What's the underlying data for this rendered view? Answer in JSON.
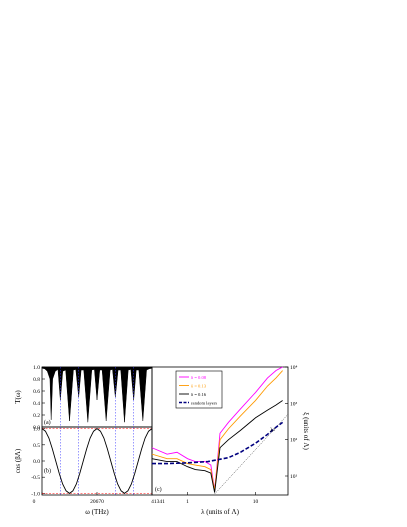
{
  "chart_data": [
    {
      "panel_label": "(a)",
      "type": "line",
      "ylabel": "T(ω)",
      "yticks": [
        "0.0",
        "0.2",
        "0.4",
        "0.6",
        "0.8",
        "1.0"
      ],
      "ylim": [
        0,
        1.0
      ],
      "xlim": [
        0,
        41341
      ],
      "series": [
        {
          "color": "#000000",
          "x": [
            0,
            1000,
            2000,
            3000,
            3445,
            4000,
            5000,
            6000,
            6890,
            7800,
            8900,
            10335,
            11800,
            12700,
            13780,
            14700,
            15700,
            17225,
            18700,
            19700,
            20670,
            21700,
            22600,
            24115,
            25600,
            26500,
            27560,
            28600,
            29600,
            31005,
            32400,
            33400,
            34450,
            35400,
            36400,
            37895,
            39300,
            40300,
            41341
          ],
          "y": [
            0.98,
            0.97,
            0.93,
            0.8,
            0.12,
            0.8,
            0.93,
            0.96,
            0.45,
            0.93,
            0.95,
            0.1,
            0.95,
            0.96,
            0.5,
            0.95,
            0.95,
            0.08,
            0.95,
            0.96,
            0.45,
            0.95,
            0.95,
            0.1,
            0.95,
            0.96,
            0.5,
            0.95,
            0.95,
            0.08,
            0.95,
            0.96,
            0.45,
            0.95,
            0.95,
            0.1,
            0.95,
            0.97,
            0.98
          ]
        }
      ],
      "grid": false
    },
    {
      "panel_label": "(b)",
      "type": "line",
      "ylabel": "cos (βΛ)",
      "xlabel": "ω (THz)",
      "xticks": [
        "0",
        "20670",
        "41341"
      ],
      "yticks": [
        "-1.0",
        "-0.5",
        "0.0",
        "0.5",
        "1.0"
      ],
      "xlim": [
        0,
        41341
      ],
      "ylim": [
        -1.05,
        1.05
      ],
      "series": [
        {
          "color": "#000000",
          "x": [
            0,
            1292,
            2584,
            3876,
            5168,
            6460,
            7752,
            9044,
            10336,
            11628,
            12920,
            14212,
            15504,
            16796,
            18088,
            19380,
            20672,
            21964,
            23256,
            24548,
            25840,
            27132,
            28424,
            29716,
            31008,
            32300,
            33592,
            34884,
            36176,
            37468,
            38760,
            40052,
            41341
          ],
          "y": [
            1.0,
            0.92,
            0.71,
            0.38,
            0.0,
            -0.38,
            -0.71,
            -0.92,
            -1.0,
            -0.92,
            -0.71,
            -0.38,
            0.0,
            0.38,
            0.71,
            0.92,
            1.0,
            0.92,
            0.71,
            0.38,
            0.0,
            -0.38,
            -0.71,
            -0.92,
            -1.0,
            -0.92,
            -0.71,
            -0.38,
            0.0,
            0.38,
            0.71,
            0.92,
            1.0
          ]
        }
      ],
      "reference_lines": {
        "horizontal_red": [
          1.0,
          -1.0
        ],
        "vertical_blue_x": [
          6890,
          13780,
          27560,
          34450
        ]
      },
      "grid": false
    },
    {
      "panel_label": "(c)",
      "type": "line",
      "xlabel": "λ (units of Λ)",
      "ylabel": "ξ (units of Λ)",
      "xscale": "log",
      "yscale": "log",
      "xticks": [
        "1",
        "10"
      ],
      "yticks": [
        "10¹",
        "10²",
        "10³",
        "10⁴"
      ],
      "xlim": [
        0.3,
        30
      ],
      "ylim": [
        3,
        10000
      ],
      "legend_position": "top-left",
      "annotation": "λ²",
      "series": [
        {
          "name": "δ = 0.08",
          "color": "#ff00ff",
          "x": [
            0.3,
            0.5,
            0.7,
            1.0,
            1.3,
            1.8,
            2.2,
            2.5,
            3,
            4,
            6,
            10,
            15,
            20,
            25
          ],
          "y": [
            60,
            40,
            45,
            30,
            25,
            25,
            20,
            4,
            150,
            300,
            700,
            2000,
            5000,
            8000,
            10000
          ]
        },
        {
          "name": "δ = 0.13",
          "color": "#ff9900",
          "x": [
            0.3,
            0.5,
            0.7,
            1.0,
            1.3,
            1.8,
            2.2,
            2.5,
            3,
            4,
            6,
            10,
            15,
            20,
            25
          ],
          "y": [
            40,
            30,
            30,
            22,
            20,
            18,
            15,
            4,
            100,
            200,
            450,
            1200,
            3000,
            5000,
            8000
          ]
        },
        {
          "name": "δ = 0.16",
          "color": "#000000",
          "x": [
            0.3,
            0.5,
            0.7,
            1.0,
            1.3,
            1.8,
            2.2,
            2.5,
            3,
            4,
            6,
            10,
            15,
            20,
            25
          ],
          "y": [
            30,
            25,
            25,
            18,
            15,
            14,
            12,
            3.5,
            60,
            100,
            180,
            400,
            650,
            900,
            1200
          ]
        },
        {
          "name": "random layers",
          "color": "#00007f",
          "x": [
            0.3,
            0.5,
            1,
            2,
            4,
            6,
            10,
            15,
            20,
            25
          ],
          "y": [
            22,
            22,
            23,
            25,
            32,
            45,
            80,
            140,
            220,
            300
          ]
        }
      ],
      "grid": false
    }
  ]
}
